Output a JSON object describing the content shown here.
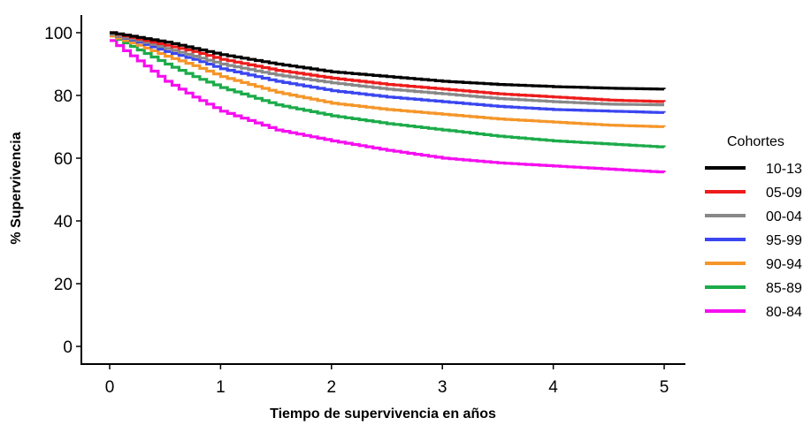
{
  "chart_data": {
    "type": "line",
    "title": "",
    "xlabel": "Tiempo de supervivencia en años",
    "ylabel": "% Supervivencia",
    "xlim": [
      0,
      5
    ],
    "ylim": [
      0,
      100
    ],
    "x_ticks": [
      "0",
      "1",
      "2",
      "3",
      "4",
      "5"
    ],
    "y_ticks": [
      "0",
      "20",
      "40",
      "60",
      "80",
      "100"
    ],
    "grid": false,
    "legend_title": "Cohortes",
    "legend_position": "right",
    "x": [
      0,
      0.25,
      0.5,
      0.75,
      1,
      1.5,
      2,
      2.5,
      3,
      3.5,
      4,
      4.5,
      5
    ],
    "series": [
      {
        "name": "10-13",
        "color": "#000000",
        "values": [
          100,
          98.5,
          97,
          95,
          93,
          90,
          87.5,
          86,
          84.5,
          83.5,
          82.8,
          82.3,
          82
        ]
      },
      {
        "name": "05-09",
        "color": "#ee1c1c",
        "values": [
          100,
          98,
          96,
          94,
          91.5,
          88,
          85.5,
          83.5,
          82,
          80.5,
          79.5,
          78.5,
          78
        ]
      },
      {
        "name": "00-04",
        "color": "#888888",
        "values": [
          99.5,
          97.5,
          95,
          92.5,
          90,
          86.5,
          84,
          82,
          80.5,
          79,
          78,
          77.2,
          77
        ]
      },
      {
        "name": "95-99",
        "color": "#3a46f0",
        "values": [
          99.5,
          97,
          94,
          91.5,
          88.5,
          84.5,
          81.5,
          79.5,
          78,
          76.5,
          75.5,
          75,
          74.5
        ]
      },
      {
        "name": "90-94",
        "color": "#f5962a",
        "values": [
          99,
          96,
          92.5,
          89.5,
          86,
          81,
          77.5,
          75.5,
          74,
          72.5,
          71.5,
          70.5,
          70
        ]
      },
      {
        "name": "85-89",
        "color": "#1cab4a",
        "values": [
          99,
          94.5,
          90,
          86,
          82.5,
          77,
          73.5,
          71,
          69,
          67,
          65.5,
          64.5,
          63.5
        ]
      },
      {
        "name": "80-84",
        "color": "#f50ff0",
        "values": [
          97.5,
          91,
          84.5,
          79.5,
          75,
          69,
          65.5,
          62.5,
          60,
          58.5,
          57.5,
          56.5,
          55.5
        ]
      }
    ]
  }
}
